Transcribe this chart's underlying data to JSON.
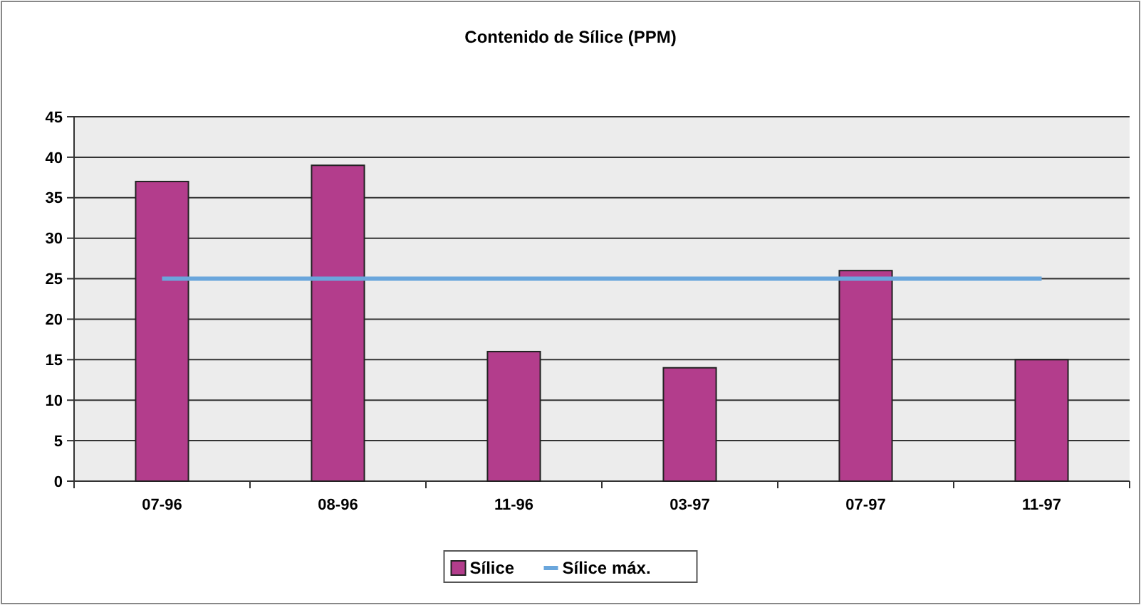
{
  "chart_data": {
    "type": "bar",
    "title": "Contenido de Sílice (PPM)",
    "categories": [
      "07-96",
      "08-96",
      "11-96",
      "03-97",
      "07-97",
      "11-97"
    ],
    "series": [
      {
        "name": "Sílice",
        "color": "#b33d8c",
        "values": [
          37,
          39,
          16,
          14,
          26,
          15
        ]
      },
      {
        "name": "Sílice máx.",
        "type": "line",
        "color": "#6aa6dc",
        "values": [
          25,
          25,
          25,
          25,
          25,
          25
        ]
      }
    ],
    "ylim": [
      0,
      45
    ],
    "yticks": [
      0,
      5,
      10,
      15,
      20,
      25,
      30,
      35,
      40,
      45
    ],
    "grid": "y",
    "legend": "bottom"
  }
}
